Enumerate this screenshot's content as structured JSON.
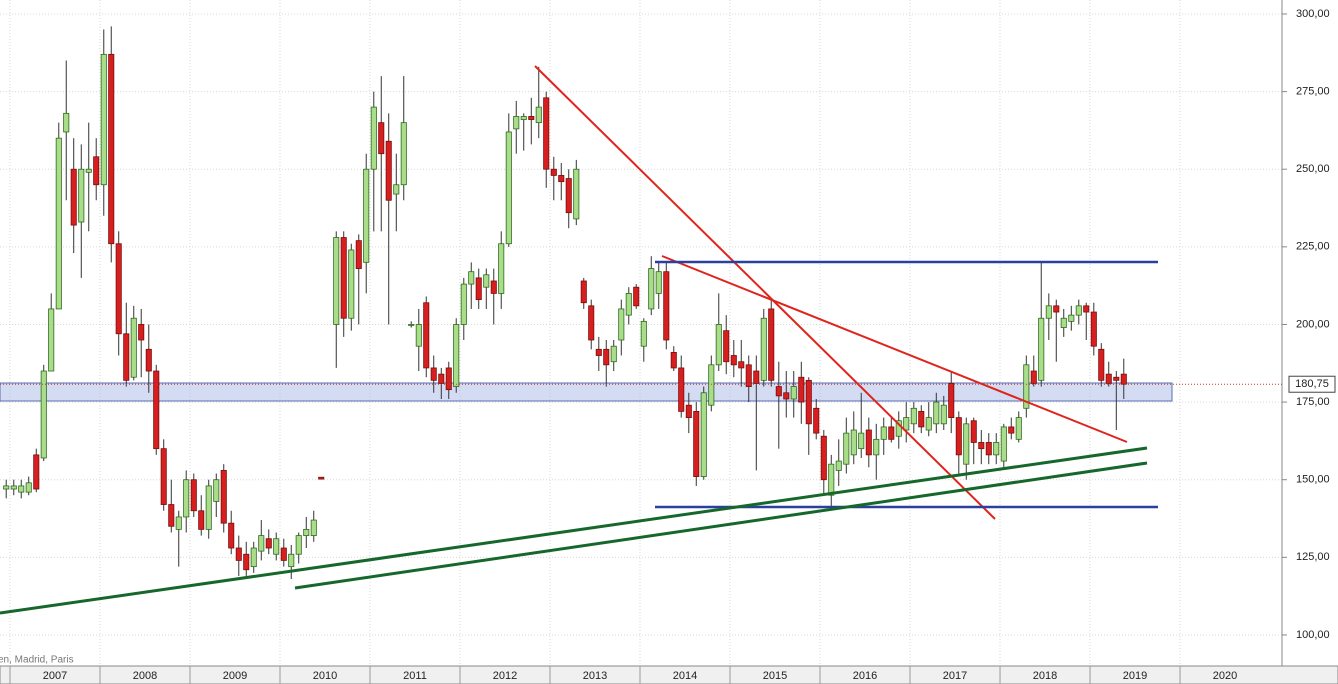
{
  "chart_data": {
    "type": "candlestick",
    "source_note": "en, Madrid, Paris",
    "x": [
      2006.958,
      2007.042,
      2007.125,
      2007.208,
      2007.292,
      2007.375,
      2007.458,
      2007.542,
      2007.625,
      2007.708,
      2007.792,
      2007.875,
      2007.958,
      2008.042,
      2008.125,
      2008.208,
      2008.292,
      2008.375,
      2008.458,
      2008.542,
      2008.625,
      2008.708,
      2008.792,
      2008.875,
      2008.958,
      2009.042,
      2009.125,
      2009.208,
      2009.292,
      2009.375,
      2009.458,
      2009.542,
      2009.625,
      2009.708,
      2009.792,
      2009.875,
      2009.958,
      2010.042,
      2010.125,
      2010.208,
      2010.292,
      2010.375,
      2010.458,
      2010.625,
      2010.708,
      2010.792,
      2010.875,
      2010.958,
      2011.042,
      2011.125,
      2011.208,
      2011.292,
      2011.375,
      2011.458,
      2011.542,
      2011.625,
      2011.708,
      2011.792,
      2011.875,
      2011.958,
      2012.042,
      2012.125,
      2012.208,
      2012.292,
      2012.375,
      2012.458,
      2012.542,
      2012.625,
      2012.708,
      2012.792,
      2012.875,
      2012.958,
      2013.042,
      2013.125,
      2013.208,
      2013.292,
      2013.375,
      2013.458,
      2013.542,
      2013.625,
      2013.708,
      2013.792,
      2013.875,
      2013.958,
      2014.042,
      2014.125,
      2014.208,
      2014.292,
      2014.375,
      2014.458,
      2014.542,
      2014.625,
      2014.708,
      2014.792,
      2014.875,
      2014.958,
      2015.042,
      2015.125,
      2015.208,
      2015.292,
      2015.375,
      2015.458,
      2015.542,
      2015.625,
      2015.708,
      2015.792,
      2015.875,
      2015.958,
      2016.042,
      2016.125,
      2016.208,
      2016.292,
      2016.375,
      2016.458,
      2016.542,
      2016.625,
      2016.708,
      2016.792,
      2016.875,
      2016.958,
      2017.042,
      2017.125,
      2017.208,
      2017.292,
      2017.375,
      2017.458,
      2017.542,
      2017.625,
      2017.708,
      2017.792,
      2017.875,
      2017.958,
      2018.042,
      2018.125,
      2018.208,
      2018.292,
      2018.375,
      2018.458,
      2018.542,
      2018.625,
      2018.708,
      2018.792,
      2018.875,
      2018.958,
      2019.042,
      2019.125,
      2019.208,
      2019.292,
      2019.375
    ],
    "open": [
      147,
      147,
      146,
      146,
      158,
      157,
      185,
      205,
      262,
      250,
      233,
      249,
      254,
      245,
      287,
      226,
      197,
      183,
      200,
      192,
      185,
      160,
      142,
      134,
      138,
      150,
      140,
      134,
      143,
      153,
      136,
      128,
      126,
      122,
      127,
      131,
      126,
      128,
      122,
      126,
      132,
      132,
      150.8,
      200,
      228,
      202,
      227,
      220,
      250,
      265,
      259,
      242,
      245,
      200,
      193,
      207,
      186,
      184,
      186,
      180,
      200,
      213,
      215,
      212,
      214,
      210,
      226,
      263,
      266,
      267,
      265,
      273,
      250,
      248,
      247,
      234,
      214,
      206,
      192,
      192,
      188,
      195,
      203,
      212,
      193,
      205,
      210,
      217,
      191,
      186,
      174,
      172,
      151,
      174,
      187,
      198,
      190,
      188,
      187,
      185,
      182,
      205,
      180,
      178,
      176,
      183,
      182,
      173,
      164,
      145,
      153,
      155,
      158,
      160,
      166,
      158,
      163,
      167,
      164,
      166,
      168,
      172,
      166,
      168,
      168,
      181,
      170,
      155,
      169,
      162,
      162,
      158,
      156,
      167,
      163,
      173,
      185,
      182,
      202,
      206,
      199,
      201,
      203,
      206,
      204,
      192,
      184,
      183,
      184
    ],
    "high": [
      150,
      150,
      150,
      151,
      160,
      187,
      210,
      265,
      285,
      260,
      258,
      265,
      260,
      295,
      296,
      230,
      207,
      206,
      205,
      200,
      187,
      163,
      150,
      140,
      153,
      152,
      145,
      150,
      152,
      155,
      140,
      132,
      130,
      130,
      137,
      134,
      133,
      131,
      129,
      133,
      138,
      140,
      150.8,
      230,
      230,
      226,
      229,
      255,
      275,
      280,
      268,
      255,
      280,
      201,
      205,
      209,
      190,
      186,
      188,
      202,
      215,
      220,
      218,
      218,
      218,
      230,
      268,
      272,
      268,
      273,
      283,
      275,
      254,
      252,
      250,
      253,
      215,
      208,
      196,
      195,
      195,
      208,
      212,
      213,
      202,
      222,
      220,
      220,
      193,
      190,
      178,
      175,
      180,
      190,
      210,
      203,
      195,
      195,
      190,
      190,
      205,
      208,
      188,
      185,
      185,
      188,
      183,
      176,
      166,
      158,
      163,
      170,
      172,
      178,
      170,
      168,
      170,
      170,
      172,
      175,
      175,
      174,
      175,
      178,
      177,
      185,
      172,
      170,
      170,
      166,
      165,
      165,
      168,
      170,
      172,
      190,
      190,
      220,
      210,
      208,
      205,
      206,
      208,
      207,
      207,
      194,
      188,
      185,
      189
    ],
    "low": [
      144,
      145,
      144,
      145,
      146,
      156,
      185,
      205,
      240,
      223,
      215,
      230,
      240,
      235,
      220,
      190,
      180,
      182,
      183,
      178,
      158,
      140,
      133,
      122,
      133,
      138,
      132,
      131,
      138,
      133,
      126,
      119,
      119,
      120,
      124,
      126,
      124,
      122,
      118,
      123,
      128,
      130,
      150.2,
      186,
      196,
      198,
      200,
      210,
      230,
      230,
      200,
      230,
      240,
      199,
      185,
      183,
      178,
      176,
      176,
      178,
      195,
      205,
      205,
      205,
      200,
      205,
      225,
      255,
      256,
      258,
      260,
      244,
      240,
      240,
      231,
      232,
      205,
      192,
      185,
      180,
      185,
      190,
      200,
      205,
      188,
      203,
      205,
      192,
      185,
      170,
      165,
      148,
      150,
      172,
      185,
      184,
      183,
      180,
      175,
      153,
      180,
      180,
      160,
      170,
      170,
      168,
      158,
      163,
      145,
      141,
      148,
      152,
      155,
      157,
      154,
      150,
      158,
      162,
      160,
      162,
      165,
      165,
      164,
      165,
      166,
      165,
      152,
      150,
      155,
      155,
      155,
      155,
      154,
      163,
      162,
      170,
      180,
      180,
      195,
      188,
      196,
      198,
      200,
      195,
      190,
      180,
      180,
      166,
      176
    ],
    "close": [
      148,
      148,
      148,
      149,
      147,
      185,
      205,
      260,
      268,
      232,
      250,
      250,
      245,
      287,
      226,
      197,
      182,
      202,
      195,
      185,
      160,
      142,
      135,
      138,
      150,
      140,
      134,
      148,
      150,
      136,
      128,
      124,
      121,
      128,
      132,
      128,
      131,
      124,
      126,
      132,
      134,
      137,
      150.2,
      228,
      202,
      224,
      218,
      250,
      270,
      255,
      240,
      245,
      265,
      200,
      200,
      186,
      182,
      181,
      179,
      200,
      213,
      217,
      208,
      216,
      210,
      226,
      262,
      267,
      267,
      266,
      270,
      250,
      248,
      246,
      236,
      250,
      207,
      195,
      190,
      187,
      193,
      205,
      210,
      206,
      201,
      218,
      217,
      195,
      186,
      172,
      170,
      151,
      178,
      187,
      200,
      188,
      187,
      186,
      180,
      181,
      202,
      182,
      177,
      176,
      180,
      175,
      168,
      165,
      150,
      155,
      156,
      165,
      166,
      165,
      158,
      163,
      167,
      163,
      169,
      170,
      173,
      167,
      170,
      175,
      174,
      170,
      158,
      168,
      162,
      160,
      158,
      162,
      167,
      165,
      170,
      187,
      181,
      202,
      206,
      204,
      202,
      203,
      206,
      204,
      193,
      182,
      181,
      182,
      180.75
    ],
    "up_color": "#a9dd8a",
    "down_color": "#d71f1f",
    "last_price": {
      "value": 180.75,
      "label": "180,75"
    },
    "xlim": [
      2006.889,
      2021.133
    ],
    "xticks": [
      {
        "value": 2007.5,
        "label": "2007"
      },
      {
        "value": 2008.5,
        "label": "2008"
      },
      {
        "value": 2009.5,
        "label": "2009"
      },
      {
        "value": 2010.5,
        "label": "2010"
      },
      {
        "value": 2011.5,
        "label": "2011"
      },
      {
        "value": 2012.5,
        "label": "2012"
      },
      {
        "value": 2013.5,
        "label": "2013"
      },
      {
        "value": 2014.5,
        "label": "2014"
      },
      {
        "value": 2015.5,
        "label": "2015"
      },
      {
        "value": 2016.5,
        "label": "2016"
      },
      {
        "value": 2017.5,
        "label": "2017"
      },
      {
        "value": 2018.5,
        "label": "2018"
      },
      {
        "value": 2019.5,
        "label": "2019"
      },
      {
        "value": 2020.5,
        "label": "2020"
      }
    ],
    "ylim": [
      90,
      304.5
    ],
    "yticks": [
      {
        "value": 100,
        "label": "100,00"
      },
      {
        "value": 125,
        "label": "125,00"
      },
      {
        "value": 150,
        "label": "150,00"
      },
      {
        "value": 175,
        "label": "175,00"
      },
      {
        "value": 200,
        "label": "200,00"
      },
      {
        "value": 225,
        "label": "225,00"
      },
      {
        "value": 250,
        "label": "250,00"
      },
      {
        "value": 275,
        "label": "275,00"
      },
      {
        "value": 300,
        "label": "300,00"
      }
    ],
    "grid": true
  }
}
